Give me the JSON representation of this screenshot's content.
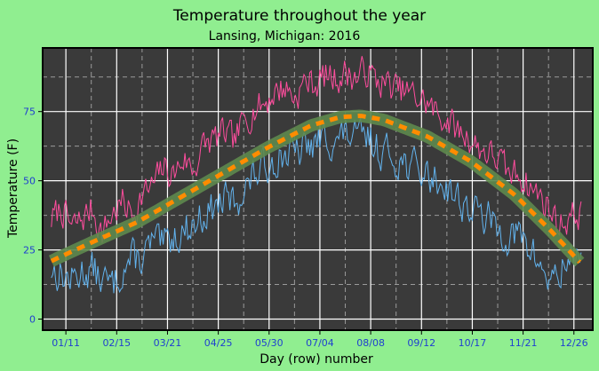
{
  "chart_data": {
    "type": "line",
    "title": "Temperature throughout the year",
    "subtitle": "Lansing, Michigan: 2016",
    "xlabel": "Day (row) number",
    "ylabel": "Temperature (F)",
    "x_tick_labels": [
      "01/11",
      "02/15",
      "03/21",
      "04/25",
      "05/30",
      "07/04",
      "08/08",
      "09/12",
      "10/17",
      "11/21",
      "12/26"
    ],
    "x_tick_days": [
      11,
      46,
      81,
      116,
      151,
      186,
      221,
      256,
      291,
      326,
      361
    ],
    "xlim": [
      -5,
      374
    ],
    "y_ticks": [
      0,
      25,
      50,
      75
    ],
    "ylim": [
      -4,
      98
    ],
    "grid": true,
    "colors": {
      "plot_background": "#3a3a3a",
      "page_background": "#90ee90",
      "high_temp": "#ff4d9e",
      "low_temp": "#62b3ee",
      "smooth_band": "#5e8a4e",
      "smooth_line": "#ff8c00",
      "grid_major": "#ffffff",
      "grid_minor": "#9a9a9a"
    },
    "series": [
      {
        "key": "high",
        "approx": [
          [
            1,
            36
          ],
          [
            8,
            40
          ],
          [
            15,
            33
          ],
          [
            22,
            36
          ],
          [
            29,
            40
          ],
          [
            36,
            31
          ],
          [
            43,
            38
          ],
          [
            50,
            42
          ],
          [
            57,
            38
          ],
          [
            64,
            45
          ],
          [
            71,
            48
          ],
          [
            78,
            55
          ],
          [
            85,
            52
          ],
          [
            92,
            58
          ],
          [
            99,
            54
          ],
          [
            106,
            63
          ],
          [
            113,
            65
          ],
          [
            120,
            67
          ],
          [
            127,
            64
          ],
          [
            134,
            72
          ],
          [
            141,
            76
          ],
          [
            148,
            78
          ],
          [
            155,
            82
          ],
          [
            162,
            84
          ],
          [
            169,
            80
          ],
          [
            176,
            86
          ],
          [
            183,
            85
          ],
          [
            190,
            88
          ],
          [
            197,
            87
          ],
          [
            204,
            89
          ],
          [
            211,
            87
          ],
          [
            218,
            90
          ],
          [
            225,
            86
          ],
          [
            232,
            85
          ],
          [
            239,
            83
          ],
          [
            246,
            82
          ],
          [
            253,
            80
          ],
          [
            260,
            78
          ],
          [
            267,
            74
          ],
          [
            274,
            72
          ],
          [
            281,
            68
          ],
          [
            288,
            66
          ],
          [
            295,
            62
          ],
          [
            302,
            60
          ],
          [
            309,
            58
          ],
          [
            316,
            52
          ],
          [
            323,
            53
          ],
          [
            330,
            48
          ],
          [
            337,
            45
          ],
          [
            344,
            40
          ],
          [
            351,
            34
          ],
          [
            358,
            37
          ],
          [
            366,
            38
          ]
        ]
      },
      {
        "key": "low",
        "approx": [
          [
            1,
            18
          ],
          [
            8,
            16
          ],
          [
            15,
            14
          ],
          [
            22,
            17
          ],
          [
            29,
            18
          ],
          [
            36,
            14
          ],
          [
            43,
            12
          ],
          [
            50,
            18
          ],
          [
            57,
            22
          ],
          [
            64,
            22
          ],
          [
            71,
            28
          ],
          [
            78,
            26
          ],
          [
            85,
            30
          ],
          [
            92,
            32
          ],
          [
            99,
            34
          ],
          [
            106,
            38
          ],
          [
            113,
            40
          ],
          [
            120,
            43
          ],
          [
            127,
            42
          ],
          [
            134,
            47
          ],
          [
            141,
            52
          ],
          [
            148,
            55
          ],
          [
            155,
            58
          ],
          [
            162,
            60
          ],
          [
            169,
            59
          ],
          [
            176,
            62
          ],
          [
            183,
            63
          ],
          [
            190,
            66
          ],
          [
            197,
            64
          ],
          [
            204,
            67
          ],
          [
            211,
            65
          ],
          [
            218,
            66
          ],
          [
            225,
            62
          ],
          [
            232,
            60
          ],
          [
            239,
            58
          ],
          [
            246,
            56
          ],
          [
            253,
            54
          ],
          [
            260,
            52
          ],
          [
            267,
            50
          ],
          [
            274,
            48
          ],
          [
            281,
            44
          ],
          [
            288,
            40
          ],
          [
            295,
            38
          ],
          [
            302,
            36
          ],
          [
            309,
            32
          ],
          [
            316,
            30
          ],
          [
            323,
            30
          ],
          [
            330,
            26
          ],
          [
            337,
            20
          ],
          [
            344,
            14
          ],
          [
            351,
            16
          ],
          [
            358,
            22
          ],
          [
            366,
            26
          ]
        ]
      },
      {
        "key": "smooth",
        "approx": [
          [
            1,
            21
          ],
          [
            30,
            28
          ],
          [
            60,
            35
          ],
          [
            90,
            44
          ],
          [
            120,
            53
          ],
          [
            150,
            62
          ],
          [
            180,
            70
          ],
          [
            200,
            73
          ],
          [
            214,
            73.5
          ],
          [
            230,
            72
          ],
          [
            260,
            66
          ],
          [
            290,
            57
          ],
          [
            320,
            45
          ],
          [
            345,
            32
          ],
          [
            366,
            20
          ]
        ]
      }
    ]
  }
}
